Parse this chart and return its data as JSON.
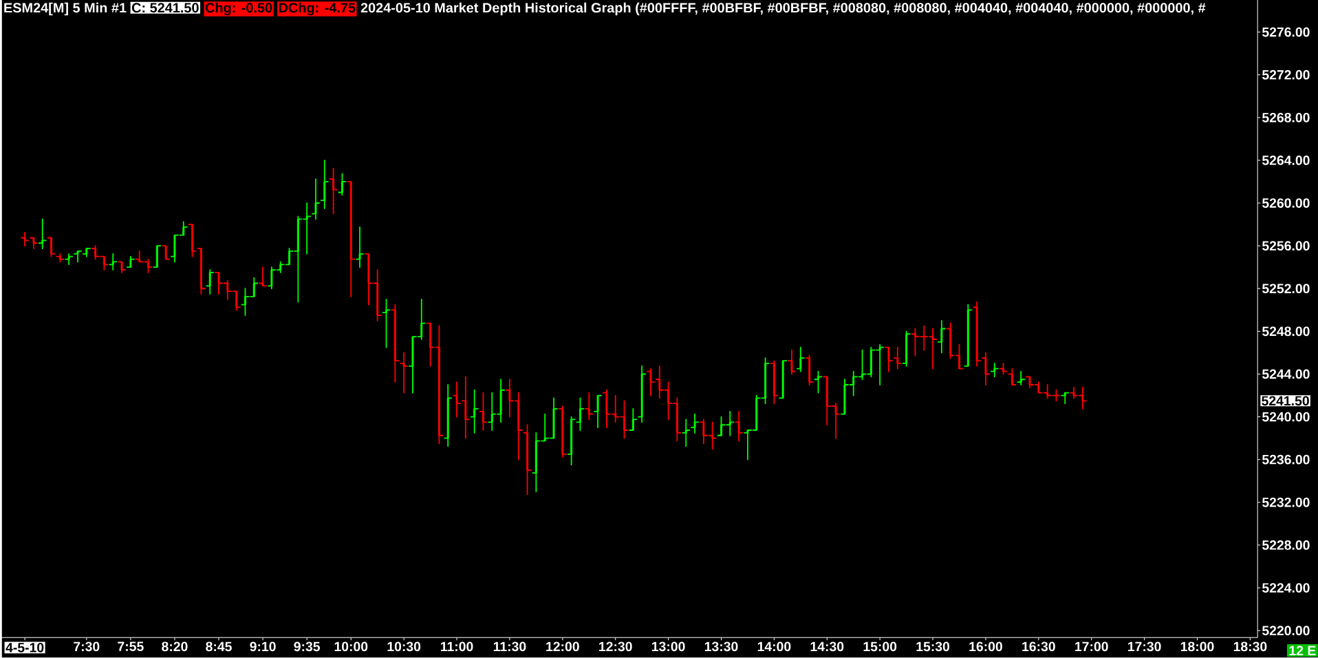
{
  "chart_data": {
    "type": "candlestick",
    "title": "ESM24[M] 5 Min #1",
    "subtitle": "2024-05-10 Market Depth Historical Graph (#00FFFF, #00BFBF, #00BFBF, #008080, #008080, #004040, #004040, #000000, #000000, #",
    "x": [
      6.9167,
      7,
      7.0833,
      7.1667,
      7.25,
      7.3333,
      7.4167,
      7.5,
      7.5833,
      7.6667,
      7.75,
      7.8333,
      7.9167,
      8,
      8.0833,
      8.1667,
      8.25,
      8.3333,
      8.4167,
      8.5,
      8.5833,
      8.6667,
      8.75,
      8.8333,
      8.9167,
      9,
      9.0833,
      9.1667,
      9.25,
      9.3333,
      9.4167,
      9.5,
      9.5833,
      9.6667,
      9.75,
      9.8333,
      9.9167,
      10,
      10.0833,
      10.1667,
      10.25,
      10.3333,
      10.4167,
      10.5,
      10.5833,
      10.6667,
      10.75,
      10.8333,
      10.9167,
      11,
      11.0833,
      11.1667,
      11.25,
      11.3333,
      11.4167,
      11.5,
      11.5833,
      11.6667,
      11.75,
      11.8333,
      11.9167,
      12,
      12.0833,
      12.1667,
      12.25,
      12.3333,
      12.4167,
      12.5,
      12.5833,
      12.6667,
      12.75,
      12.8333,
      12.9167,
      13,
      13.0833,
      13.1667,
      13.25,
      13.3333,
      13.4167,
      13.5,
      13.5833,
      13.6667,
      13.75,
      13.8333,
      13.9167,
      14,
      14.0833,
      14.1667,
      14.25,
      14.3333,
      14.4167,
      14.5,
      14.5833,
      14.6667,
      14.75,
      14.8333,
      14.9167,
      15,
      15.0833,
      15.1667,
      15.25,
      15.3333,
      15.4167,
      15.5,
      15.5833,
      15.6667,
      15.75,
      15.8333,
      15.9167,
      16,
      16.0833,
      16.1667,
      16.25,
      16.3333,
      16.4167,
      16.5,
      16.5833,
      16.6667,
      16.75,
      16.8333,
      16.9167
    ],
    "ohlc": [
      [
        5256.75,
        5257.25,
        5256.0,
        5256.5
      ],
      [
        5256.75,
        5256.75,
        5255.75,
        5256.25
      ],
      [
        5256.25,
        5258.5,
        5255.75,
        5256.5
      ],
      [
        5256.75,
        5256.75,
        5255.0,
        5255.25
      ],
      [
        5255.0,
        5255.25,
        5254.5,
        5254.75
      ],
      [
        5254.75,
        5255.25,
        5254.25,
        5255.0
      ],
      [
        5255.25,
        5255.5,
        5254.5,
        5255.5
      ],
      [
        5255.25,
        5255.75,
        5255.0,
        5255.75
      ],
      [
        5255.75,
        5256.0,
        5254.75,
        5255.0
      ],
      [
        5255.0,
        5255.0,
        5253.75,
        5254.25
      ],
      [
        5254.25,
        5255.25,
        5253.75,
        5254.5
      ],
      [
        5254.5,
        5254.5,
        5253.5,
        5253.75
      ],
      [
        5254.0,
        5255.0,
        5254.0,
        5254.75
      ],
      [
        5254.75,
        5255.5,
        5254.5,
        5254.5
      ],
      [
        5254.5,
        5254.75,
        5253.5,
        5254.0
      ],
      [
        5254.0,
        5256.0,
        5254.0,
        5256.0
      ],
      [
        5256.0,
        5256.0,
        5254.75,
        5254.75
      ],
      [
        5255.0,
        5257.0,
        5254.5,
        5257.0
      ],
      [
        5257.0,
        5258.25,
        5257.0,
        5257.75
      ],
      [
        5258.0,
        5258.0,
        5255.0,
        5255.5
      ],
      [
        5255.75,
        5255.75,
        5251.5,
        5252.0
      ],
      [
        5252.25,
        5253.75,
        5251.5,
        5253.5
      ],
      [
        5253.5,
        5253.5,
        5251.5,
        5252.5
      ],
      [
        5252.5,
        5252.75,
        5251.0,
        5251.75
      ],
      [
        5251.75,
        5251.75,
        5250.0,
        5250.25
      ],
      [
        5250.5,
        5252.0,
        5249.5,
        5251.25
      ],
      [
        5251.25,
        5253.0,
        5251.25,
        5252.5
      ],
      [
        5252.5,
        5254.0,
        5252.25,
        5252.25
      ],
      [
        5252.25,
        5254.0,
        5252.0,
        5253.75
      ],
      [
        5253.75,
        5254.5,
        5253.5,
        5254.25
      ],
      [
        5254.25,
        5255.75,
        5254.25,
        5255.5
      ],
      [
        5255.5,
        5258.75,
        5250.75,
        5258.5
      ],
      [
        5258.5,
        5260.0,
        5255.25,
        5258.75
      ],
      [
        5259.0,
        5262.25,
        5258.5,
        5260.0
      ],
      [
        5260.25,
        5264.0,
        5259.5,
        5262.0
      ],
      [
        5262.25,
        5263.25,
        5259.0,
        5261.25
      ],
      [
        5261.0,
        5262.75,
        5260.75,
        5262.0
      ],
      [
        5262.0,
        5262.0,
        5251.25,
        5254.75
      ],
      [
        5254.75,
        5257.75,
        5254.0,
        5255.25
      ],
      [
        5255.25,
        5255.25,
        5250.5,
        5252.5
      ],
      [
        5252.5,
        5253.75,
        5249.0,
        5249.5
      ],
      [
        5249.75,
        5251.0,
        5246.5,
        5250.0
      ],
      [
        5250.0,
        5250.5,
        5243.25,
        5245.25
      ],
      [
        5245.0,
        5246.0,
        5242.25,
        5244.75
      ],
      [
        5244.75,
        5247.5,
        5242.25,
        5247.5
      ],
      [
        5247.5,
        5251.0,
        5247.25,
        5248.75
      ],
      [
        5248.75,
        5248.75,
        5244.75,
        5246.5
      ],
      [
        5246.5,
        5248.5,
        5237.5,
        5238.25
      ],
      [
        5238.0,
        5243.0,
        5237.25,
        5241.75
      ],
      [
        5242.0,
        5243.25,
        5240.0,
        5241.25
      ],
      [
        5241.5,
        5243.75,
        5238.0,
        5239.75
      ],
      [
        5240.0,
        5242.5,
        5238.5,
        5240.75
      ],
      [
        5240.5,
        5242.25,
        5238.75,
        5239.5
      ],
      [
        5239.5,
        5242.25,
        5238.75,
        5240.25
      ],
      [
        5240.25,
        5243.5,
        5239.5,
        5242.5
      ],
      [
        5242.5,
        5243.5,
        5240.0,
        5241.5
      ],
      [
        5241.5,
        5242.25,
        5236.0,
        5238.75
      ],
      [
        5238.5,
        5239.25,
        5232.75,
        5235.0
      ],
      [
        5234.75,
        5238.5,
        5233.0,
        5237.75
      ],
      [
        5237.75,
        5240.25,
        5237.75,
        5238.0
      ],
      [
        5238.0,
        5241.75,
        5238.0,
        5240.75
      ],
      [
        5240.75,
        5241.0,
        5236.25,
        5236.5
      ],
      [
        5236.5,
        5240.0,
        5235.5,
        5239.75
      ],
      [
        5239.5,
        5241.75,
        5238.75,
        5240.75
      ],
      [
        5240.75,
        5242.25,
        5239.75,
        5240.25
      ],
      [
        5240.5,
        5242.0,
        5239.0,
        5242.0
      ],
      [
        5242.25,
        5242.5,
        5239.0,
        5240.25
      ],
      [
        5240.25,
        5242.0,
        5239.5,
        5240.0
      ],
      [
        5240.0,
        5241.5,
        5238.0,
        5238.75
      ],
      [
        5238.75,
        5240.75,
        5238.75,
        5239.75
      ],
      [
        5240.0,
        5244.75,
        5239.5,
        5244.0
      ],
      [
        5244.25,
        5244.5,
        5242.0,
        5243.25
      ],
      [
        5243.5,
        5244.75,
        5241.75,
        5242.5
      ],
      [
        5242.5,
        5243.25,
        5239.75,
        5241.25
      ],
      [
        5241.25,
        5241.75,
        5237.75,
        5238.5
      ],
      [
        5238.5,
        5239.75,
        5237.25,
        5238.75
      ],
      [
        5239.0,
        5240.25,
        5238.5,
        5239.5
      ],
      [
        5239.5,
        5239.75,
        5237.5,
        5238.25
      ],
      [
        5238.25,
        5239.5,
        5237.0,
        5238.0
      ],
      [
        5238.25,
        5240.0,
        5238.25,
        5239.25
      ],
      [
        5239.25,
        5240.5,
        5238.25,
        5239.5
      ],
      [
        5239.5,
        5240.5,
        5237.75,
        5238.5
      ],
      [
        5238.5,
        5238.75,
        5236.0,
        5238.75
      ],
      [
        5238.75,
        5242.0,
        5238.75,
        5241.75
      ],
      [
        5241.75,
        5245.5,
        5241.25,
        5245.0
      ],
      [
        5245.0,
        5245.25,
        5241.25,
        5242.0
      ],
      [
        5241.75,
        5245.25,
        5241.75,
        5245.25
      ],
      [
        5245.25,
        5246.25,
        5244.0,
        5244.25
      ],
      [
        5244.5,
        5246.5,
        5244.25,
        5245.5
      ],
      [
        5245.5,
        5245.75,
        5243.0,
        5243.25
      ],
      [
        5243.5,
        5244.25,
        5242.25,
        5243.75
      ],
      [
        5243.75,
        5243.75,
        5239.25,
        5241.0
      ],
      [
        5241.0,
        5241.25,
        5238.0,
        5240.25
      ],
      [
        5240.25,
        5243.5,
        5240.25,
        5243.0
      ],
      [
        5243.0,
        5244.25,
        5242.0,
        5243.75
      ],
      [
        5243.75,
        5246.25,
        5243.5,
        5244.0
      ],
      [
        5244.0,
        5246.5,
        5243.75,
        5246.25
      ],
      [
        5246.25,
        5246.75,
        5243.0,
        5246.5
      ],
      [
        5246.5,
        5246.5,
        5244.25,
        5245.25
      ],
      [
        5245.5,
        5246.5,
        5244.5,
        5245.0
      ],
      [
        5245.0,
        5248.0,
        5244.75,
        5247.75
      ],
      [
        5247.75,
        5248.25,
        5245.75,
        5247.5
      ],
      [
        5247.5,
        5248.5,
        5246.25,
        5247.5
      ],
      [
        5247.5,
        5248.25,
        5244.5,
        5247.25
      ],
      [
        5247.0,
        5249.0,
        5246.0,
        5248.25
      ],
      [
        5248.25,
        5248.75,
        5245.5,
        5245.75
      ],
      [
        5245.75,
        5246.75,
        5244.5,
        5244.5
      ],
      [
        5244.75,
        5250.5,
        5244.75,
        5250.0
      ],
      [
        5250.25,
        5250.75,
        5244.75,
        5245.25
      ],
      [
        5245.5,
        5246.0,
        5243.0,
        5244.0
      ],
      [
        5244.25,
        5245.0,
        5243.75,
        5244.5
      ],
      [
        5244.5,
        5245.0,
        5244.0,
        5244.25
      ],
      [
        5244.0,
        5244.5,
        5243.0,
        5243.0
      ],
      [
        5243.25,
        5244.25,
        5243.0,
        5243.5
      ],
      [
        5243.75,
        5243.75,
        5242.75,
        5243.0
      ],
      [
        5243.0,
        5243.25,
        5242.25,
        5242.25
      ],
      [
        5242.25,
        5243.0,
        5241.75,
        5242.0
      ],
      [
        5242.0,
        5242.5,
        5241.5,
        5242.0
      ],
      [
        5242.0,
        5242.25,
        5241.25,
        5242.25
      ],
      [
        5242.25,
        5242.75,
        5241.75,
        5242.0
      ],
      [
        5242.0,
        5242.75,
        5240.75,
        5241.5
      ]
    ],
    "colors": [
      "#ff0000",
      "#ff0000",
      "#00ff00",
      "#ff0000",
      "#ff0000",
      "#00ff00",
      "#00ff00",
      "#00ff00",
      "#ff0000",
      "#ff0000",
      "#00ff00",
      "#ff0000",
      "#00ff00",
      "#ff0000",
      "#ff0000",
      "#00ff00",
      "#ff0000",
      "#00ff00",
      "#00ff00",
      "#ff0000",
      "#ff0000",
      "#00ff00",
      "#ff0000",
      "#ff0000",
      "#ff0000",
      "#00ff00",
      "#00ff00",
      "#ff0000",
      "#00ff00",
      "#00ff00",
      "#00ff00",
      "#00ff00",
      "#00ff00",
      "#00ff00",
      "#00ff00",
      "#ff0000",
      "#00ff00",
      "#ff0000",
      "#00ff00",
      "#ff0000",
      "#ff0000",
      "#00ff00",
      "#ff0000",
      "#ff0000",
      "#00ff00",
      "#00ff00",
      "#ff0000",
      "#ff0000",
      "#00ff00",
      "#ff0000",
      "#ff0000",
      "#00ff00",
      "#ff0000",
      "#00ff00",
      "#00ff00",
      "#ff0000",
      "#ff0000",
      "#ff0000",
      "#00ff00",
      "#00ff00",
      "#00ff00",
      "#ff0000",
      "#00ff00",
      "#00ff00",
      "#ff0000",
      "#00ff00",
      "#ff0000",
      "#ff0000",
      "#ff0000",
      "#00ff00",
      "#00ff00",
      "#ff0000",
      "#ff0000",
      "#ff0000",
      "#ff0000",
      "#00ff00",
      "#00ff00",
      "#ff0000",
      "#ff0000",
      "#00ff00",
      "#00ff00",
      "#ff0000",
      "#00ff00",
      "#00ff00",
      "#00ff00",
      "#ff0000",
      "#00ff00",
      "#ff0000",
      "#00ff00",
      "#ff0000",
      "#00ff00",
      "#ff0000",
      "#ff0000",
      "#00ff00",
      "#00ff00",
      "#00ff00",
      "#00ff00",
      "#00ff00",
      "#ff0000",
      "#ff0000",
      "#00ff00",
      "#ff0000",
      "#ff0000",
      "#ff0000",
      "#00ff00",
      "#ff0000",
      "#ff0000",
      "#00ff00",
      "#ff0000",
      "#ff0000",
      "#00ff00",
      "#ff0000",
      "#ff0000",
      "#00ff00",
      "#ff0000",
      "#ff0000",
      "#ff0000",
      "#ff0000",
      "#00ff00",
      "#ff0000",
      "#ff0000"
    ],
    "xlim": [
      6.7,
      18.57
    ],
    "ylim": [
      5219.35,
      5279
    ],
    "xticks": [
      {
        "value": 6.9167,
        "label": "4-5-10"
      },
      {
        "value": 7.5,
        "label": "7:30"
      },
      {
        "value": 7.9167,
        "label": "7:55"
      },
      {
        "value": 8.3333,
        "label": "8:20"
      },
      {
        "value": 8.75,
        "label": "8:45"
      },
      {
        "value": 9.1667,
        "label": "9:10"
      },
      {
        "value": 9.5833,
        "label": "9:35"
      },
      {
        "value": 10,
        "label": "10:00"
      },
      {
        "value": 10.5,
        "label": "10:30"
      },
      {
        "value": 11,
        "label": "11:00"
      },
      {
        "value": 11.5,
        "label": "11:30"
      },
      {
        "value": 12,
        "label": "12:00"
      },
      {
        "value": 12.5,
        "label": "12:30"
      },
      {
        "value": 13,
        "label": "13:00"
      },
      {
        "value": 13.5,
        "label": "13:30"
      },
      {
        "value": 14,
        "label": "14:00"
      },
      {
        "value": 14.5,
        "label": "14:30"
      },
      {
        "value": 15,
        "label": "15:00"
      },
      {
        "value": 15.5,
        "label": "15:30"
      },
      {
        "value": 16,
        "label": "16:00"
      },
      {
        "value": 16.5,
        "label": "16:30"
      },
      {
        "value": 17,
        "label": "17:00"
      },
      {
        "value": 17.5,
        "label": "17:30"
      },
      {
        "value": 18,
        "label": "18:00"
      },
      {
        "value": 18.5,
        "label": "18:30"
      }
    ],
    "yticks": [
      {
        "value": 5220,
        "label": "5220.00"
      },
      {
        "value": 5224,
        "label": "5224.00"
      },
      {
        "value": 5228,
        "label": "5228.00"
      },
      {
        "value": 5232,
        "label": "5232.00"
      },
      {
        "value": 5236,
        "label": "5236.00"
      },
      {
        "value": 5240,
        "label": "5240.00"
      },
      {
        "value": 5244,
        "label": "5244.00"
      },
      {
        "value": 5248,
        "label": "5248.00"
      },
      {
        "value": 5252,
        "label": "5252.00"
      },
      {
        "value": 5256,
        "label": "5256.00"
      },
      {
        "value": 5260,
        "label": "5260.00"
      },
      {
        "value": 5264,
        "label": "5264.00"
      },
      {
        "value": 5268,
        "label": "5268.00"
      },
      {
        "value": 5272,
        "label": "5272.00"
      },
      {
        "value": 5276,
        "label": "5276.00"
      }
    ],
    "annotations": [
      "C: 5241.50",
      "Chg: -0.50",
      "DChg: -4.75",
      "5241.50",
      "12 E"
    ]
  }
}
